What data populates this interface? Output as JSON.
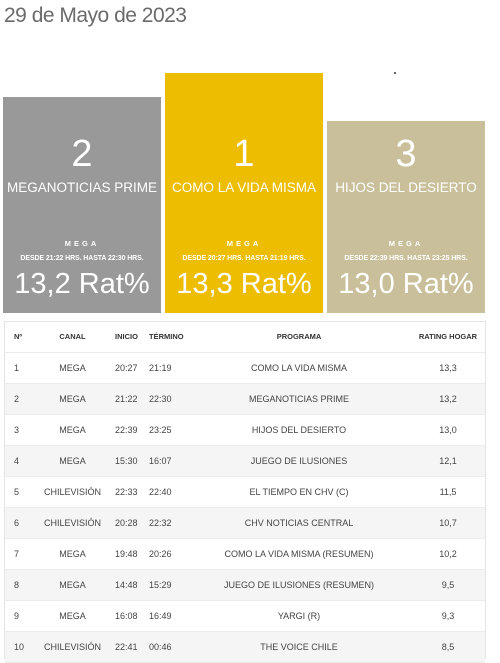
{
  "date": "29 de Mayo de 2023",
  "podium": [
    {
      "rank": "2",
      "program": "MEGANOTICIAS PRIME",
      "channel": "MEGA",
      "times": "DESDE 21:22 HRS. HASTA 22:30 HRS.",
      "rating": "13,2 Rat%",
      "color": "#999999"
    },
    {
      "rank": "1",
      "program": "COMO LA VIDA MISMA",
      "channel": "MEGA",
      "times": "DESDE 20:27 HRS. HASTA 21:19 HRS.",
      "rating": "13,3 Rat%",
      "color": "#ecbd00"
    },
    {
      "rank": "3",
      "program": "HIJOS DEL DESIERTO",
      "channel": "MEGA",
      "times": "DESDE 22:39 HRS. HASTA 23:25 HRS.",
      "rating": "13,0 Rat%",
      "color": "#c9c09b"
    }
  ],
  "table": {
    "headers": {
      "num": "Nº",
      "canal": "CANAL",
      "inicio": "INICIO",
      "termino": "TÉRMINO",
      "programa": "PROGRAMA",
      "rating": "RATING HOGAR"
    },
    "rows": [
      {
        "num": "1",
        "canal": "MEGA",
        "inicio": "20:27",
        "termino": "21:19",
        "programa": "COMO LA VIDA MISMA",
        "rating": "13,3"
      },
      {
        "num": "2",
        "canal": "MEGA",
        "inicio": "21:22",
        "termino": "22:30",
        "programa": "MEGANOTICIAS PRIME",
        "rating": "13,2"
      },
      {
        "num": "3",
        "canal": "MEGA",
        "inicio": "22:39",
        "termino": "23:25",
        "programa": "HIJOS DEL DESIERTO",
        "rating": "13,0"
      },
      {
        "num": "4",
        "canal": "MEGA",
        "inicio": "15:30",
        "termino": "16:07",
        "programa": "JUEGO DE ILUSIONES",
        "rating": "12,1"
      },
      {
        "num": "5",
        "canal": "CHILEVISIÓN",
        "inicio": "22:33",
        "termino": "22:40",
        "programa": "EL TIEMPO EN CHV (C)",
        "rating": "11,5"
      },
      {
        "num": "6",
        "canal": "CHILEVISIÓN",
        "inicio": "20:28",
        "termino": "22:32",
        "programa": "CHV NOTICIAS CENTRAL",
        "rating": "10,7"
      },
      {
        "num": "7",
        "canal": "MEGA",
        "inicio": "19:48",
        "termino": "20:26",
        "programa": "COMO LA VIDA MISMA (RESUMEN)",
        "rating": "10,2"
      },
      {
        "num": "8",
        "canal": "MEGA",
        "inicio": "14:48",
        "termino": "15:29",
        "programa": "JUEGO DE ILUSIONES (RESUMEN)",
        "rating": "9,5"
      },
      {
        "num": "9",
        "canal": "MEGA",
        "inicio": "16:08",
        "termino": "16:49",
        "programa": "YARGI (R)",
        "rating": "9,3"
      },
      {
        "num": "10",
        "canal": "CHILEVISIÓN",
        "inicio": "22:41",
        "termino": "00:46",
        "programa": "THE VOICE CHILE",
        "rating": "8,5"
      }
    ]
  }
}
